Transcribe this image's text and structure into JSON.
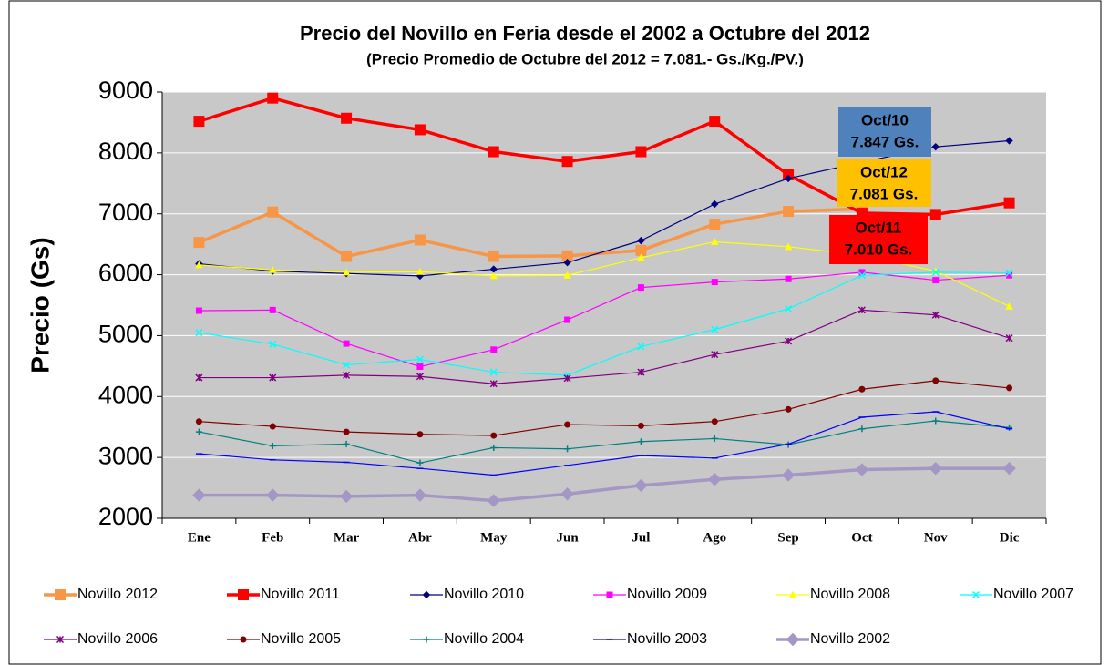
{
  "chart_data": {
    "type": "line",
    "title": "Precio del Novillo en Feria desde el 2002 a Octubre del 2012",
    "subtitle": "(Precio Promedio de Octubre del 2012 = 7.081.- Gs./Kg./PV.)",
    "y_label": "Precio (Gs)",
    "categories": [
      "Ene",
      "Feb",
      "Mar",
      "Abr",
      "May",
      "Jun",
      "Jul",
      "Ago",
      "Sep",
      "Oct",
      "Nov",
      "Dic"
    ],
    "ylim": [
      2000,
      9000
    ],
    "yticks": [
      2000,
      3000,
      4000,
      5000,
      6000,
      7000,
      8000,
      9000
    ],
    "grid": true,
    "legend": "bottom",
    "series": [
      {
        "name": "Novillo 2012",
        "color": "#f79646",
        "marker": "square",
        "width": 3.5,
        "values": [
          6530,
          7030,
          6300,
          6570,
          6300,
          6310,
          6400,
          6830,
          7040,
          7081,
          null,
          null
        ]
      },
      {
        "name": "Novillo 2011",
        "color": "#ff0000",
        "marker": "square",
        "width": 3.5,
        "values": [
          8520,
          8900,
          8570,
          8380,
          8020,
          7860,
          8020,
          8520,
          7640,
          7010,
          6990,
          7180
        ]
      },
      {
        "name": "Novillo 2010",
        "color": "#000080",
        "marker": "diamond",
        "width": 1.2,
        "values": [
          6180,
          6060,
          6020,
          5980,
          6090,
          6200,
          6560,
          7160,
          7580,
          7847,
          8100,
          8200
        ]
      },
      {
        "name": "Novillo 2009",
        "color": "#ff00ff",
        "marker": "square",
        "width": 1.2,
        "values": [
          5410,
          5420,
          4870,
          4490,
          4770,
          5260,
          5790,
          5880,
          5930,
          6040,
          5910,
          5990
        ]
      },
      {
        "name": "Novillo 2008",
        "color": "#ffff00",
        "marker": "triangle",
        "width": 1.2,
        "values": [
          6160,
          6080,
          6040,
          6050,
          5980,
          5990,
          6280,
          6540,
          6460,
          6320,
          6060,
          5480
        ]
      },
      {
        "name": "Novillo 2007",
        "color": "#00ffff",
        "marker": "x",
        "width": 1.2,
        "values": [
          5050,
          4860,
          4520,
          4610,
          4400,
          4350,
          4820,
          5100,
          5440,
          5990,
          6040,
          6030
        ]
      },
      {
        "name": "Novillo 2006",
        "color": "#800080",
        "marker": "asterisk",
        "width": 1.2,
        "values": [
          4310,
          4310,
          4350,
          4330,
          4210,
          4300,
          4400,
          4690,
          4910,
          5420,
          5340,
          4960
        ]
      },
      {
        "name": "Novillo 2005",
        "color": "#800000",
        "marker": "circle",
        "width": 1.2,
        "values": [
          3590,
          3510,
          3420,
          3380,
          3360,
          3540,
          3520,
          3590,
          3790,
          4120,
          4260,
          4140
        ]
      },
      {
        "name": "Novillo 2004",
        "color": "#008080",
        "marker": "plus",
        "width": 1.2,
        "values": [
          3420,
          3190,
          3220,
          2910,
          3160,
          3140,
          3260,
          3310,
          3210,
          3470,
          3600,
          3490
        ]
      },
      {
        "name": "Novillo 2003",
        "color": "#0000ff",
        "marker": "dash",
        "width": 1.2,
        "values": [
          3060,
          2960,
          2920,
          2820,
          2710,
          2870,
          3030,
          2990,
          3220,
          3660,
          3750,
          3470
        ]
      },
      {
        "name": "Novillo 2002",
        "color": "#a497c5",
        "marker": "diamond",
        "width": 3.5,
        "values": [
          2380,
          2380,
          2360,
          2380,
          2290,
          2400,
          2540,
          2640,
          2710,
          2800,
          2820,
          2820
        ]
      }
    ],
    "annotations": [
      {
        "lines": [
          "Oct/10",
          "7.847 Gs."
        ],
        "color": "#4f81bd"
      },
      {
        "lines": [
          "Oct/12",
          "7.081 Gs."
        ],
        "color": "#ffc000"
      },
      {
        "lines": [
          "Oct/11",
          "7.010 Gs."
        ],
        "color": "#ff0000"
      }
    ]
  }
}
